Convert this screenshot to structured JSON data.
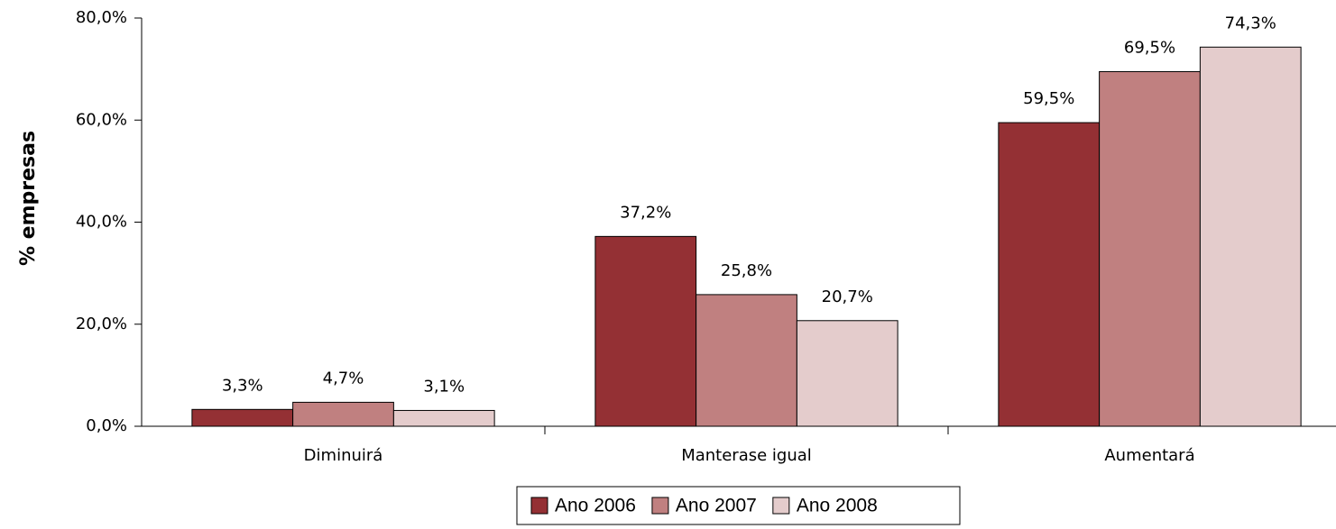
{
  "chart_data": {
    "type": "bar",
    "y_label": "% empresas",
    "categories": [
      "Diminuirá",
      "Manterase igual",
      "Aumentará"
    ],
    "series": [
      {
        "name": "Ano 2006",
        "color": "#943034",
        "values": [
          3.3,
          37.2,
          59.5
        ],
        "value_labels": [
          "3,3%",
          "37,2%",
          "59,5%"
        ]
      },
      {
        "name": "Ano 2007",
        "color": "#c08080",
        "values": [
          4.7,
          25.8,
          69.5
        ],
        "value_labels": [
          "4,7%",
          "25,8%",
          "69,5%"
        ]
      },
      {
        "name": "Ano 2008",
        "color": "#e4cccc",
        "values": [
          3.1,
          20.7,
          74.3
        ],
        "value_labels": [
          "3,1%",
          "20,7%",
          "74,3%"
        ]
      }
    ],
    "ylim": [
      0,
      80
    ],
    "yticks": [
      {
        "value": 0,
        "label": "0,0%"
      },
      {
        "value": 20,
        "label": "20,0%"
      },
      {
        "value": 40,
        "label": "40,0%"
      },
      {
        "value": 60,
        "label": "60,0%"
      },
      {
        "value": 80,
        "label": "80,0%"
      }
    ],
    "legend": "bottom"
  }
}
